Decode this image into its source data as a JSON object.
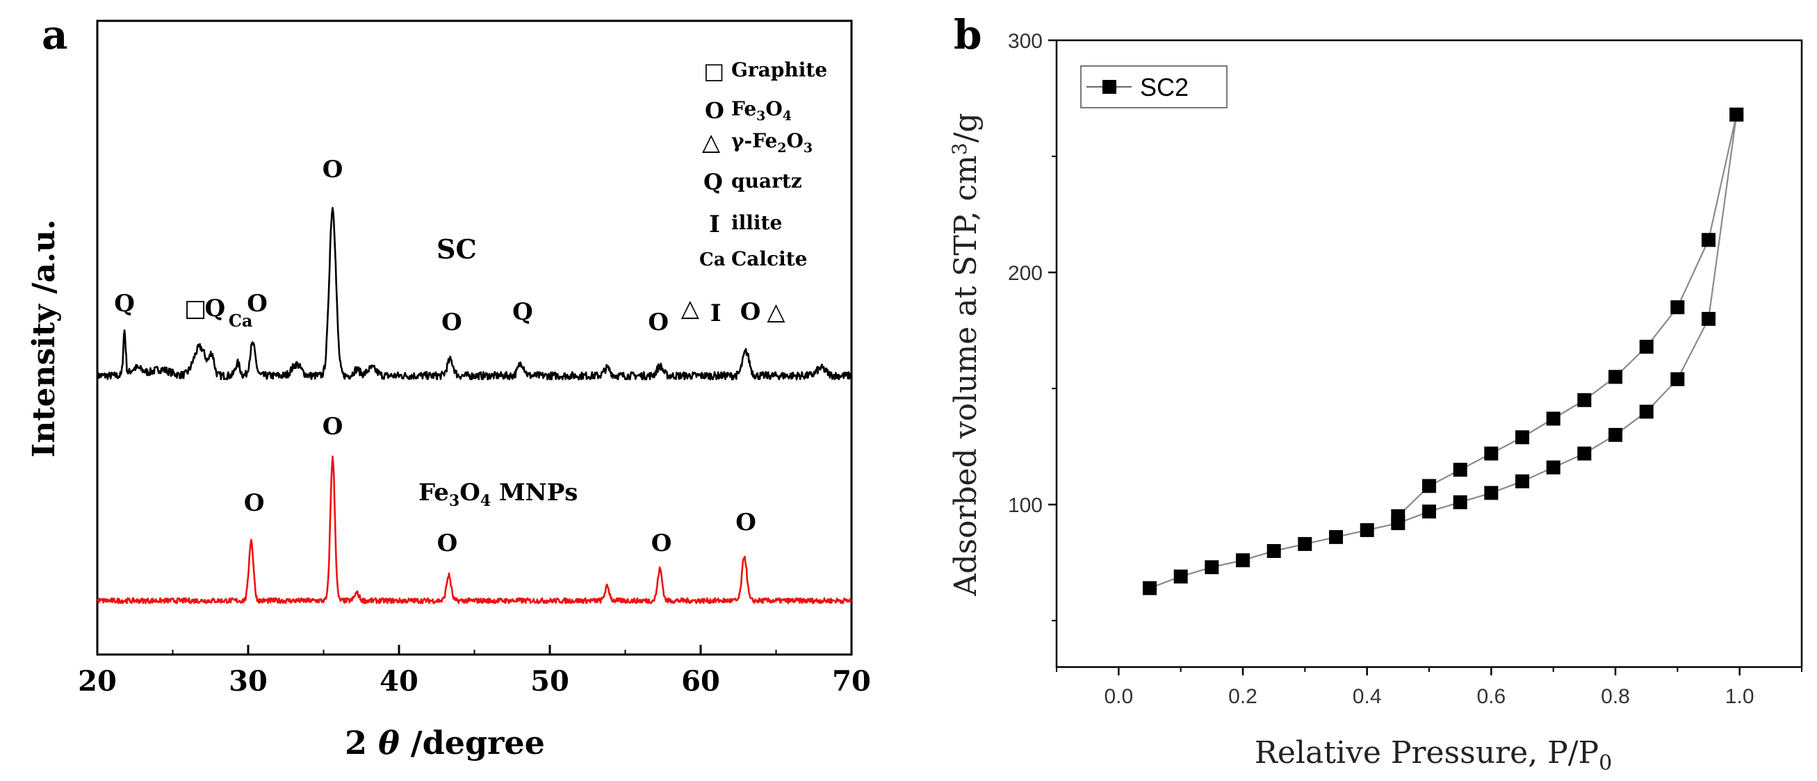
{
  "panel_a": {
    "panel_label": "a",
    "xlabel_prefix": "2 ",
    "xlabel_theta": "θ",
    "xlabel_suffix": " /degree",
    "ylabel": "Intensity /a.u.",
    "trace_labels": {
      "sc": "SC",
      "mnp_prefix": "Fe",
      "mnp_sub1": "3",
      "mnp_mid": "O",
      "mnp_sub2": "4",
      "mnp_suffix": " MNPs"
    },
    "legend": {
      "graphite_symbol": "□",
      "graphite_label": "Graphite",
      "fe3o4_symbol": "O",
      "fe3o4_label_a": "Fe",
      "fe3o4_sub_a": "3",
      "fe3o4_label_b": "O",
      "fe3o4_sub_b": "4",
      "gfe_symbol": "△",
      "gfe_label_a": "γ-Fe",
      "gfe_sub_a": "2",
      "gfe_label_b": "O",
      "gfe_sub_b": "3",
      "quartz_symbol": "Q",
      "quartz_label": "quartz",
      "illite_symbol": "I",
      "illite_label": "illite",
      "calcite_symbol": "Ca",
      "calcite_label": "Calcite"
    },
    "sc_peak_markers": [
      {
        "x": 21.8,
        "text": "Q"
      },
      {
        "x": 26.5,
        "text": "□"
      },
      {
        "x": 27.8,
        "text": "Q"
      },
      {
        "x": 29.5,
        "text": "Ca"
      },
      {
        "x": 30.6,
        "text": "O"
      },
      {
        "x": 35.6,
        "text": "O"
      },
      {
        "x": 43.5,
        "text": "O"
      },
      {
        "x": 48.2,
        "text": "Q"
      },
      {
        "x": 57.2,
        "text": "O"
      },
      {
        "x": 59.3,
        "text": "△"
      },
      {
        "x": 61.0,
        "text": "I"
      },
      {
        "x": 63.3,
        "text": "O"
      },
      {
        "x": 65.0,
        "text": "△"
      }
    ],
    "mnp_peak_markers": [
      {
        "x": 30.4,
        "text": "O"
      },
      {
        "x": 35.6,
        "text": "O"
      },
      {
        "x": 43.2,
        "text": "O"
      },
      {
        "x": 57.4,
        "text": "O"
      },
      {
        "x": 63.0,
        "text": "O"
      }
    ]
  },
  "panel_b": {
    "panel_label": "b",
    "xlabel_main": "Relative Pressure,  P/P",
    "xlabel_sub": "0",
    "ylabel_main": "Adsorbed volume at STP, cm",
    "ylabel_sup": "3",
    "ylabel_end": "/g",
    "legend_label": "SC2"
  },
  "chart_data": [
    {
      "type": "line",
      "title": "",
      "xlabel": "2 θ /degree",
      "ylabel": "Intensity /a.u.",
      "xlim": [
        20,
        70
      ],
      "xticks": [
        20,
        30,
        40,
        50,
        60,
        70
      ],
      "yticks": [],
      "ylim": [
        0,
        1
      ],
      "grid": false,
      "series": [
        {
          "name": "SC",
          "color": "#000000",
          "baseline": 0.44,
          "noise": 0.006,
          "peaks": [
            {
              "x": 21.8,
              "h": 0.07,
              "w": 0.08
            },
            {
              "x": 22.6,
              "h": 0.012,
              "w": 0.4
            },
            {
              "x": 24.2,
              "h": 0.01,
              "w": 0.6
            },
            {
              "x": 26.8,
              "h": 0.045,
              "w": 0.4
            },
            {
              "x": 27.6,
              "h": 0.03,
              "w": 0.15
            },
            {
              "x": 29.3,
              "h": 0.02,
              "w": 0.15
            },
            {
              "x": 30.3,
              "h": 0.05,
              "w": 0.18
            },
            {
              "x": 33.2,
              "h": 0.018,
              "w": 0.3
            },
            {
              "x": 35.6,
              "h": 0.265,
              "w": 0.22
            },
            {
              "x": 37.2,
              "h": 0.01,
              "w": 0.2
            },
            {
              "x": 38.2,
              "h": 0.012,
              "w": 0.3
            },
            {
              "x": 43.4,
              "h": 0.025,
              "w": 0.2
            },
            {
              "x": 48.1,
              "h": 0.02,
              "w": 0.2
            },
            {
              "x": 53.8,
              "h": 0.012,
              "w": 0.2
            },
            {
              "x": 57.3,
              "h": 0.015,
              "w": 0.2
            },
            {
              "x": 63.0,
              "h": 0.038,
              "w": 0.22
            },
            {
              "x": 68.0,
              "h": 0.012,
              "w": 0.3
            }
          ]
        },
        {
          "name": "Fe3O4 MNPs",
          "color": "#ee1111",
          "baseline": 0.085,
          "noise": 0.004,
          "peaks": [
            {
              "x": 30.2,
              "h": 0.095,
              "w": 0.15
            },
            {
              "x": 35.6,
              "h": 0.225,
              "w": 0.15
            },
            {
              "x": 37.2,
              "h": 0.012,
              "w": 0.15
            },
            {
              "x": 43.3,
              "h": 0.04,
              "w": 0.15
            },
            {
              "x": 53.8,
              "h": 0.022,
              "w": 0.15
            },
            {
              "x": 57.3,
              "h": 0.05,
              "w": 0.15
            },
            {
              "x": 62.9,
              "h": 0.07,
              "w": 0.16
            }
          ]
        }
      ]
    },
    {
      "type": "line",
      "title": "",
      "xlabel": "Relative Pressure,  P/P0",
      "ylabel": "Adsorbed volume at STP, cm3/g",
      "xlim": [
        -0.1,
        1.1
      ],
      "ylim": [
        30,
        300
      ],
      "xticks": [
        0.0,
        0.2,
        0.4,
        0.6,
        0.8,
        1.0
      ],
      "yticks": [
        100,
        200,
        300
      ],
      "grid": false,
      "legend_position": "top-left",
      "series": [
        {
          "name": "SC2 adsorption",
          "x": [
            0.05,
            0.1,
            0.15,
            0.2,
            0.25,
            0.3,
            0.35,
            0.4,
            0.45,
            0.5,
            0.55,
            0.6,
            0.65,
            0.7,
            0.75,
            0.8,
            0.85,
            0.9,
            0.95,
            0.995
          ],
          "y": [
            64,
            69,
            73,
            76,
            80,
            83,
            86,
            89,
            92,
            97,
            101,
            105,
            110,
            116,
            122,
            130,
            140,
            154,
            180,
            268
          ]
        },
        {
          "name": "SC2 desorption",
          "x": [
            0.995,
            0.95,
            0.9,
            0.85,
            0.8,
            0.75,
            0.7,
            0.65,
            0.6,
            0.55,
            0.5,
            0.45
          ],
          "y": [
            268,
            214,
            185,
            168,
            155,
            145,
            137,
            129,
            122,
            115,
            108,
            95
          ]
        }
      ]
    }
  ]
}
